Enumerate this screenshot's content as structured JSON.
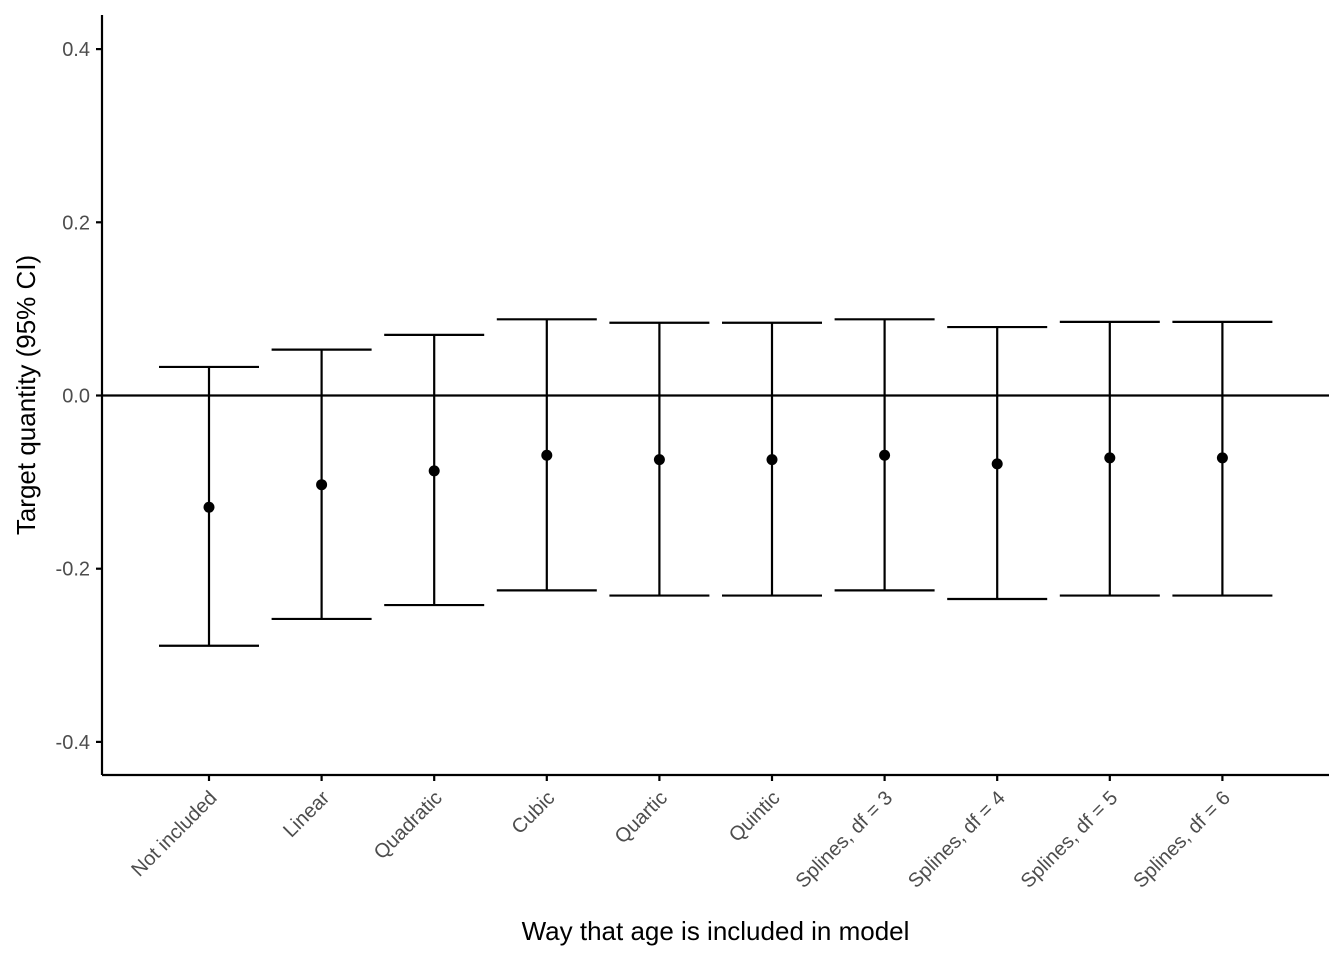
{
  "chart_data": {
    "type": "errorbar",
    "title": "",
    "xlabel": "Way that age is included in model",
    "ylabel": "Target quantity (95% CI)",
    "ylim": [
      -0.44,
      0.44
    ],
    "y_ticks": [
      -0.4,
      -0.2,
      0.0,
      0.2,
      0.4
    ],
    "y_tick_labels": [
      "-0.4",
      "-0.2",
      "0.0",
      "0.2",
      "0.4"
    ],
    "reference_line": 0.0,
    "grid": false,
    "legend": "none",
    "categories": [
      "Not included",
      "Linear",
      "Quadratic",
      "Cubic",
      "Quartic",
      "Quintic",
      "Splines, df = 3",
      "Splines, df = 4",
      "Splines, df = 5",
      "Splines, df = 6"
    ],
    "estimates": [
      -0.129,
      -0.103,
      -0.087,
      -0.069,
      -0.074,
      -0.074,
      -0.069,
      -0.079,
      -0.072,
      -0.072
    ],
    "lower": [
      -0.289,
      -0.258,
      -0.242,
      -0.225,
      -0.231,
      -0.231,
      -0.225,
      -0.235,
      -0.231,
      -0.231
    ],
    "upper": [
      0.033,
      0.053,
      0.07,
      0.088,
      0.084,
      0.084,
      0.088,
      0.079,
      0.085,
      0.085
    ],
    "colors": {
      "mark": "#000000",
      "axis": "#000000",
      "tick_label": "#4d4d4d"
    }
  }
}
